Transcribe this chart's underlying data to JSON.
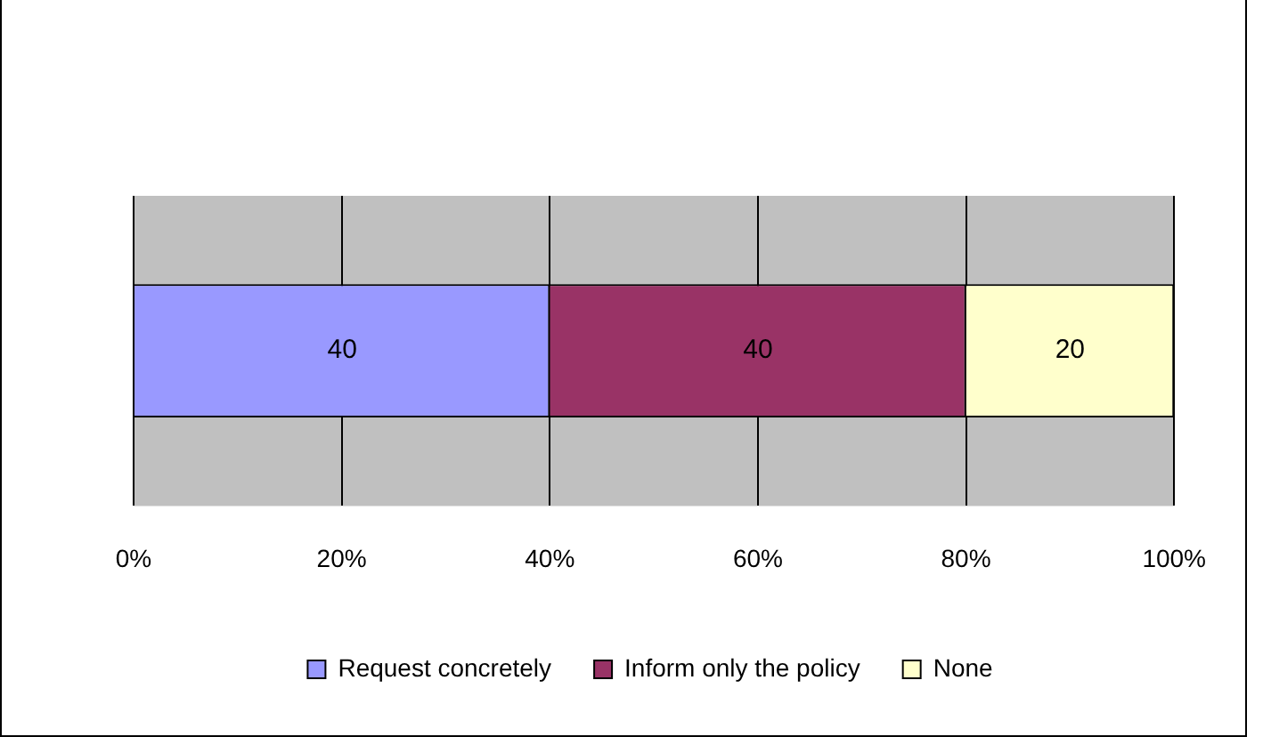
{
  "chart_data": {
    "type": "bar",
    "orientation": "horizontal",
    "stacked": true,
    "categories": [
      null
    ],
    "series": [
      {
        "name": "Request concretely",
        "color": "#9999ff",
        "values": [
          40
        ]
      },
      {
        "name": "Inform only the policy",
        "color": "#993366",
        "values": [
          40
        ]
      },
      {
        "name": "None",
        "color": "#ffffcc",
        "values": [
          20
        ]
      }
    ],
    "xlim": [
      0,
      100
    ],
    "xticks": [
      {
        "value": 0,
        "label": "0%"
      },
      {
        "value": 20,
        "label": "20%"
      },
      {
        "value": 40,
        "label": "40%"
      },
      {
        "value": 60,
        "label": "60%"
      },
      {
        "value": 80,
        "label": "80%"
      },
      {
        "value": 100,
        "label": "100%"
      }
    ],
    "grid": "x",
    "legend": "bottom",
    "data_labels": true
  }
}
